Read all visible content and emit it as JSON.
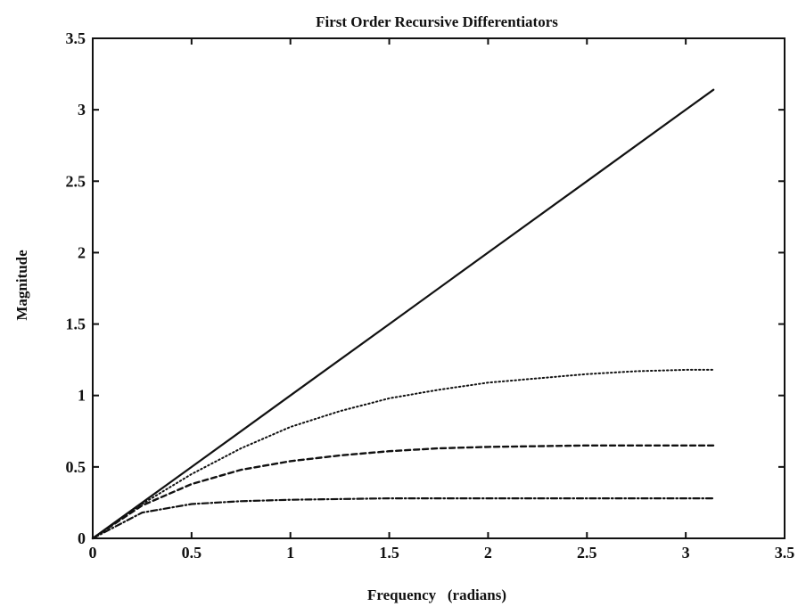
{
  "chart_data": {
    "type": "line",
    "title": "First Order Recursive Differentiators",
    "xlabel": "Frequency   (radians)",
    "ylabel": "Magnitude",
    "xlim": [
      0,
      3.5
    ],
    "ylim": [
      0,
      3.5
    ],
    "xticks": [
      "0",
      "0.5",
      "1",
      "1.5",
      "2",
      "2.5",
      "3",
      "3.5"
    ],
    "yticks": [
      "0",
      "0.5",
      "1",
      "1.5",
      "2",
      "2.5",
      "3",
      "3.5"
    ],
    "grid": false,
    "series": [
      {
        "style": "solid",
        "x": [
          0,
          0.5,
          1.0,
          1.5,
          2.0,
          2.5,
          3.0,
          3.14
        ],
        "y": [
          0,
          0.5,
          1.0,
          1.5,
          2.0,
          2.5,
          3.0,
          3.14
        ]
      },
      {
        "style": "dotted",
        "x": [
          0,
          0.25,
          0.5,
          0.75,
          1.0,
          1.25,
          1.5,
          1.75,
          2.0,
          2.25,
          2.5,
          2.75,
          3.0,
          3.14
        ],
        "y": [
          0,
          0.24,
          0.45,
          0.63,
          0.78,
          0.89,
          0.98,
          1.04,
          1.09,
          1.12,
          1.15,
          1.17,
          1.18,
          1.18
        ]
      },
      {
        "style": "dashed",
        "x": [
          0,
          0.25,
          0.5,
          0.75,
          1.0,
          1.25,
          1.5,
          1.75,
          2.0,
          2.25,
          2.5,
          2.75,
          3.0,
          3.14
        ],
        "y": [
          0,
          0.23,
          0.38,
          0.48,
          0.54,
          0.58,
          0.61,
          0.63,
          0.64,
          0.645,
          0.65,
          0.65,
          0.65,
          0.65
        ]
      },
      {
        "style": "dashdot",
        "x": [
          0,
          0.25,
          0.5,
          0.75,
          1.0,
          1.25,
          1.5,
          1.75,
          2.0,
          2.5,
          3.0,
          3.14
        ],
        "y": [
          0,
          0.18,
          0.24,
          0.26,
          0.27,
          0.275,
          0.28,
          0.28,
          0.28,
          0.28,
          0.28,
          0.28
        ]
      }
    ]
  }
}
